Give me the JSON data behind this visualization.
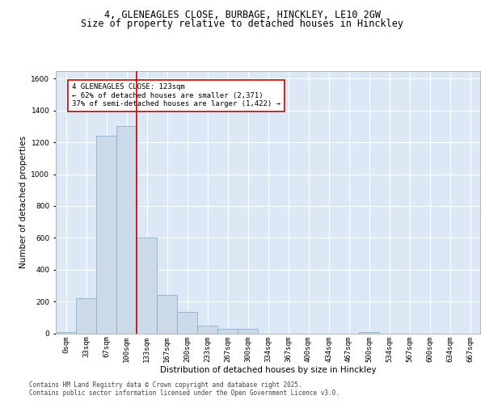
{
  "title1": "4, GLENEAGLES CLOSE, BURBAGE, HINCKLEY, LE10 2GW",
  "title2": "Size of property relative to detached houses in Hinckley",
  "xlabel": "Distribution of detached houses by size in Hinckley",
  "ylabel": "Number of detached properties",
  "bar_color": "#ccd9e8",
  "bar_edge_color": "#7aaac8",
  "categories": [
    "0sqm",
    "33sqm",
    "67sqm",
    "100sqm",
    "133sqm",
    "167sqm",
    "200sqm",
    "233sqm",
    "267sqm",
    "300sqm",
    "334sqm",
    "367sqm",
    "400sqm",
    "434sqm",
    "467sqm",
    "500sqm",
    "534sqm",
    "567sqm",
    "600sqm",
    "634sqm",
    "667sqm"
  ],
  "values": [
    10,
    220,
    1240,
    1300,
    600,
    240,
    135,
    50,
    30,
    28,
    0,
    0,
    0,
    0,
    0,
    10,
    0,
    0,
    0,
    0,
    0
  ],
  "ylim": [
    0,
    1650
  ],
  "yticks": [
    0,
    200,
    400,
    600,
    800,
    1000,
    1200,
    1400,
    1600
  ],
  "vline_x": 3.5,
  "vline_color": "#cc0000",
  "annotation_text": "4 GLENEAGLES CLOSE: 123sqm\n← 62% of detached houses are smaller (2,371)\n37% of semi-detached houses are larger (1,422) →",
  "annotation_box_color": "#cc0000",
  "footer1": "Contains HM Land Registry data © Crown copyright and database right 2025.",
  "footer2": "Contains public sector information licensed under the Open Government Licence v3.0.",
  "bg_color": "#dce8f5",
  "grid_color": "#ffffff",
  "title1_fontsize": 8.5,
  "title2_fontsize": 8.5,
  "axis_label_fontsize": 7.5,
  "tick_fontsize": 6.5,
  "annotation_fontsize": 6.5,
  "footer_fontsize": 5.5
}
